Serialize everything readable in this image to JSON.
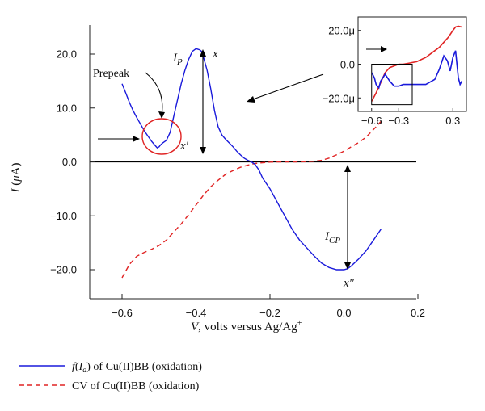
{
  "chart_data": {
    "type": "line",
    "xlabel_var": "V",
    "xlabel_rest": ", volts versus Ag/Ag",
    "xlabel_sup": "+",
    "ylabel_var": "I",
    "ylabel_paren_open": " (",
    "ylabel_mu": "μ",
    "ylabel_unit": "A)",
    "xlim": [
      -0.7,
      0.2
    ],
    "ylim": [
      -25,
      25
    ],
    "x_ticks": [
      -0.6,
      -0.4,
      -0.2,
      0.0,
      0.2
    ],
    "x_tick_labels": [
      "−0.6",
      "−0.4",
      "−0.2",
      "0.0",
      "0.2"
    ],
    "y_ticks": [
      -20,
      -10,
      0,
      10,
      20
    ],
    "y_tick_labels": [
      "−20.0",
      "−10.0",
      "0.0",
      "10.0",
      "20.0"
    ],
    "series": [
      {
        "name": "of Cu(II)BB (oxidation)",
        "legend_prefix": "f",
        "legend_paren_open": "(",
        "legend_var": "I",
        "legend_sub": "d",
        "legend_paren_close": ")",
        "color": "#1a1adb",
        "style": "solid",
        "x": [
          -0.6,
          -0.59,
          -0.58,
          -0.57,
          -0.56,
          -0.55,
          -0.54,
          -0.53,
          -0.52,
          -0.51,
          -0.505,
          -0.5,
          -0.495,
          -0.49,
          -0.48,
          -0.47,
          -0.46,
          -0.45,
          -0.44,
          -0.43,
          -0.42,
          -0.41,
          -0.4,
          -0.39,
          -0.385,
          -0.38,
          -0.37,
          -0.36,
          -0.35,
          -0.34,
          -0.33,
          -0.32,
          -0.31,
          -0.3,
          -0.29,
          -0.28,
          -0.27,
          -0.26,
          -0.25,
          -0.24,
          -0.23,
          -0.22,
          -0.2,
          -0.18,
          -0.16,
          -0.14,
          -0.12,
          -0.1,
          -0.08,
          -0.06,
          -0.04,
          -0.02,
          0.0,
          0.01,
          0.02,
          0.04,
          0.06,
          0.08,
          0.1
        ],
        "y": [
          14.5,
          12.8,
          11.0,
          9.5,
          8.2,
          7.0,
          5.8,
          4.8,
          3.8,
          3.0,
          2.6,
          2.8,
          3.2,
          3.5,
          4.0,
          5.5,
          8.5,
          11.5,
          14.5,
          17.0,
          19.0,
          20.5,
          21.0,
          20.8,
          20.5,
          19.5,
          17.0,
          13.5,
          9.5,
          6.5,
          5.0,
          4.2,
          3.5,
          2.8,
          2.0,
          1.3,
          0.7,
          0.3,
          0.0,
          -0.5,
          -1.5,
          -3.0,
          -5.0,
          -7.5,
          -10.0,
          -12.5,
          -14.5,
          -16.0,
          -17.5,
          -18.8,
          -19.6,
          -20.0,
          -20.0,
          -19.8,
          -19.3,
          -18.0,
          -16.5,
          -14.5,
          -12.5
        ]
      },
      {
        "name": "CV of Cu(II)BB (oxidation)",
        "color": "#e02424",
        "style": "dashed",
        "x": [
          -0.6,
          -0.58,
          -0.56,
          -0.54,
          -0.52,
          -0.5,
          -0.48,
          -0.46,
          -0.44,
          -0.42,
          -0.4,
          -0.38,
          -0.36,
          -0.34,
          -0.32,
          -0.3,
          -0.28,
          -0.26,
          -0.24,
          -0.22,
          -0.2,
          -0.18,
          -0.16,
          -0.14,
          -0.12,
          -0.1,
          -0.08,
          -0.06,
          -0.04,
          -0.02,
          0.0,
          0.02,
          0.04,
          0.06,
          0.08,
          0.1
        ],
        "y": [
          -21.5,
          -19.0,
          -17.5,
          -16.8,
          -16.2,
          -15.5,
          -14.5,
          -13.0,
          -11.5,
          -9.8,
          -8.0,
          -6.2,
          -4.6,
          -3.4,
          -2.3,
          -1.6,
          -1.0,
          -0.6,
          -0.3,
          -0.15,
          -0.05,
          0.0,
          0.0,
          0.0,
          0.0,
          0.05,
          0.1,
          0.3,
          0.7,
          1.3,
          2.0,
          2.8,
          3.6,
          4.6,
          6.0,
          7.5
        ]
      }
    ],
    "annotations": {
      "prepeak": "Prepeak",
      "ip_var": "I",
      "ip_sub": "P",
      "icp_var": "I",
      "icp_sub": "CP",
      "x_peak": "x",
      "x_prime": "x′",
      "x_double_prime": "x″"
    },
    "inset": {
      "xlim": [
        -0.75,
        0.45
      ],
      "ylim": [
        -28,
        28
      ],
      "x_ticks": [
        -0.6,
        -0.3,
        0.3
      ],
      "x_tick_labels": [
        "−0.6",
        "−0.3",
        "0.3"
      ],
      "y_ticks": [
        20,
        0,
        -20
      ],
      "y_tick_labels": [
        "20.0μ",
        "0.0",
        "−20.0μ"
      ],
      "box_x": [
        -0.6,
        -0.15
      ],
      "box_y": [
        -24,
        0
      ],
      "red": {
        "x": [
          -0.6,
          -0.55,
          -0.5,
          -0.45,
          -0.4,
          -0.35,
          -0.3,
          -0.25,
          -0.2,
          -0.1,
          0.0,
          0.1,
          0.15,
          0.2,
          0.25,
          0.3,
          0.33,
          0.36,
          0.4
        ],
        "y": [
          -22,
          -17,
          -11,
          -5,
          -2,
          -1,
          0,
          0,
          0.5,
          1.5,
          4,
          8,
          10,
          13,
          16,
          20,
          22,
          22.5,
          22
        ]
      },
      "blue": {
        "x": [
          -0.6,
          -0.57,
          -0.55,
          -0.52,
          -0.5,
          -0.45,
          -0.4,
          -0.35,
          -0.3,
          -0.25,
          -0.2,
          -0.1,
          0.0,
          0.1,
          0.15,
          0.2,
          0.24,
          0.27,
          0.3,
          0.33,
          0.36,
          0.38,
          0.4
        ],
        "y": [
          -5,
          -8,
          -12,
          -14,
          -10,
          -6,
          -10,
          -13,
          -13,
          -12,
          -12,
          -12,
          -12,
          -9,
          -3,
          5,
          2,
          -4,
          4,
          8,
          -8,
          -12,
          -10
        ]
      }
    }
  }
}
